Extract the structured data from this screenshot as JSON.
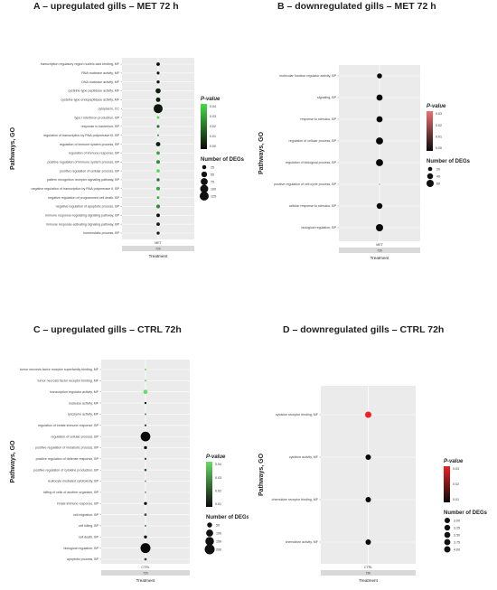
{
  "chart_data": [
    {
      "type": "scatter",
      "title": "A – upregulated gills – MET 72 h",
      "ylabel": "Pathways, GO",
      "xlabel": "Treatment",
      "x_category": "MET",
      "x_strip": "72h",
      "legend_color_title": "P-value",
      "legend_color_ticks": [
        "0.04",
        "0.03",
        "0.02",
        "0.01",
        "0.00"
      ],
      "legend_size_title": "Number of DEGs",
      "legend_size_ticks": [
        "25",
        "50",
        "75",
        "100",
        "125"
      ],
      "color_scale": [
        "#44dd44",
        "#0a0a0a"
      ],
      "categories": [
        "transcription regulatory region nucleic acid binding, MF",
        "RNA nuclease activity, MF",
        "DNA nuclease activity, MF",
        "cysteine-type peptidase activity, MF",
        "cysteine-type endopeptidase activity, MF",
        "cytoplasm, CC",
        "type I interferon production, BP",
        "response to bacterium, BP",
        "regulation of transcription by RNA polymerase III, BP",
        "regulation of immune system process, BP",
        "regulation of immune response, BP",
        "positive regulation of immune system process, BP",
        "positive regulation of cellular process, BP",
        "pattern recognition receptor signaling pathway, BP",
        "negative regulation of transcription by RNA polymerase II, BP",
        "negative regulation of programmed cell death, BP",
        "negative regulation of apoptotic process, BP",
        "immune response-regulating signaling pathway, BP",
        "immune response-activating signaling pathway, BP",
        "homeostatic process, BP"
      ],
      "series": [
        {
          "num_degs": [
            18,
            12,
            14,
            40,
            30,
            125,
            10,
            12,
            6,
            30,
            18,
            20,
            16,
            14,
            20,
            10,
            22,
            18,
            18,
            14
          ],
          "p_value": [
            0.0,
            0.002,
            0.003,
            0.004,
            0.004,
            0.002,
            0.04,
            0.02,
            0.03,
            0.004,
            0.03,
            0.025,
            0.04,
            0.02,
            0.03,
            0.03,
            0.025,
            0.0,
            0.004,
            0.004
          ]
        }
      ]
    },
    {
      "type": "scatter",
      "title": "B – downregulated gills – MET 72 h",
      "ylabel": "Pathways, GO",
      "xlabel": "Treatment",
      "x_category": "MET",
      "x_strip": "72h",
      "legend_color_title": "P-value",
      "legend_color_ticks": [
        "0.03",
        "0.02",
        "0.01",
        "0.00"
      ],
      "legend_size_title": "Number of DEGs",
      "legend_size_ticks": [
        "20",
        "40",
        "60"
      ],
      "color_scale": [
        "#f07070",
        "#0a0a0a"
      ],
      "categories": [
        "molecular function regulator activity, BP",
        "signaling, BP",
        "response to stimulus, BP",
        "regulation of cellular process, BP",
        "regulation of biological process, BP",
        "positive regulation of cell cycle process, BP",
        "cellular response to stimulus, BP",
        "biological regulation, BP"
      ],
      "series": [
        {
          "num_degs": [
            30,
            45,
            45,
            60,
            60,
            2,
            40,
            62
          ],
          "p_value": [
            0.0,
            0.0,
            0.0,
            0.0,
            0.0,
            0.035,
            0.0,
            0.0
          ]
        }
      ]
    },
    {
      "type": "scatter",
      "title": "C – upregulated gills – CTRL 72h",
      "ylabel": "Pathways, GO",
      "xlabel": "Treatment",
      "x_category": "CTRL",
      "x_strip": "72h",
      "legend_color_title": "P-value",
      "legend_color_ticks": [
        "0.04",
        "0.03",
        "0.02",
        "0.01"
      ],
      "legend_size_title": "Number of DEGs",
      "legend_size_ticks": [
        "50",
        "100",
        "150",
        "200"
      ],
      "color_scale": [
        "#66dd66",
        "#0a0a0a"
      ],
      "categories": [
        "tumor necrosis factor receptor superfamily binding, MF",
        "tumor necrosis factor receptor binding, MF",
        "transcription regulator activity, MF",
        "nuclease activity, MF",
        "lysozyme activity, MF",
        "regulation of innate immune response, BP",
        "regulation of cellular process, BP",
        "positive regulation of metabolic process, BP",
        "positive regulation of defense response, BP",
        "positive regulation of cytokine production, BP",
        "leukocyte mediated cytotoxicity, BP",
        "killing of cells of another organism, BP",
        "innate immune response, BP",
        "cell migration, BP",
        "cell killing, BP",
        "cell death, BP",
        "biological regulation, BP",
        "apoptotic process, BP"
      ],
      "series": [
        {
          "num_degs": [
            8,
            8,
            40,
            10,
            8,
            10,
            210,
            20,
            10,
            12,
            6,
            6,
            20,
            14,
            8,
            20,
            220,
            14
          ],
          "p_value": [
            0.04,
            0.04,
            0.04,
            0.01,
            0.03,
            0.02,
            0.0,
            0.01,
            0.02,
            0.02,
            0.03,
            0.03,
            0.01,
            0.02,
            0.03,
            0.01,
            0.0,
            0.02
          ]
        }
      ]
    },
    {
      "type": "scatter",
      "title": "D – downregulated gills – CTRL 72h",
      "ylabel": "Pathways, GO",
      "xlabel": "Treatment",
      "x_category": "CTRL",
      "x_strip": "72h",
      "legend_color_title": "P-value",
      "legend_color_ticks": [
        "0.03",
        "0.02",
        "0.01"
      ],
      "legend_size_title": "Number of DEGs",
      "legend_size_ticks": [
        "3.00",
        "3.25",
        "3.50",
        "3.75",
        "4.00"
      ],
      "color_scale": [
        "#ee2222",
        "#0a0a0a"
      ],
      "categories": [
        "cytokine receptor binding, MF",
        "cytokine activity, MF",
        "chemokine receptor binding, MF",
        "chemokine activity, MF"
      ],
      "series": [
        {
          "num_degs": [
            4,
            3,
            3,
            3
          ],
          "p_value": [
            0.035,
            0.01,
            0.01,
            0.01
          ]
        }
      ]
    }
  ]
}
